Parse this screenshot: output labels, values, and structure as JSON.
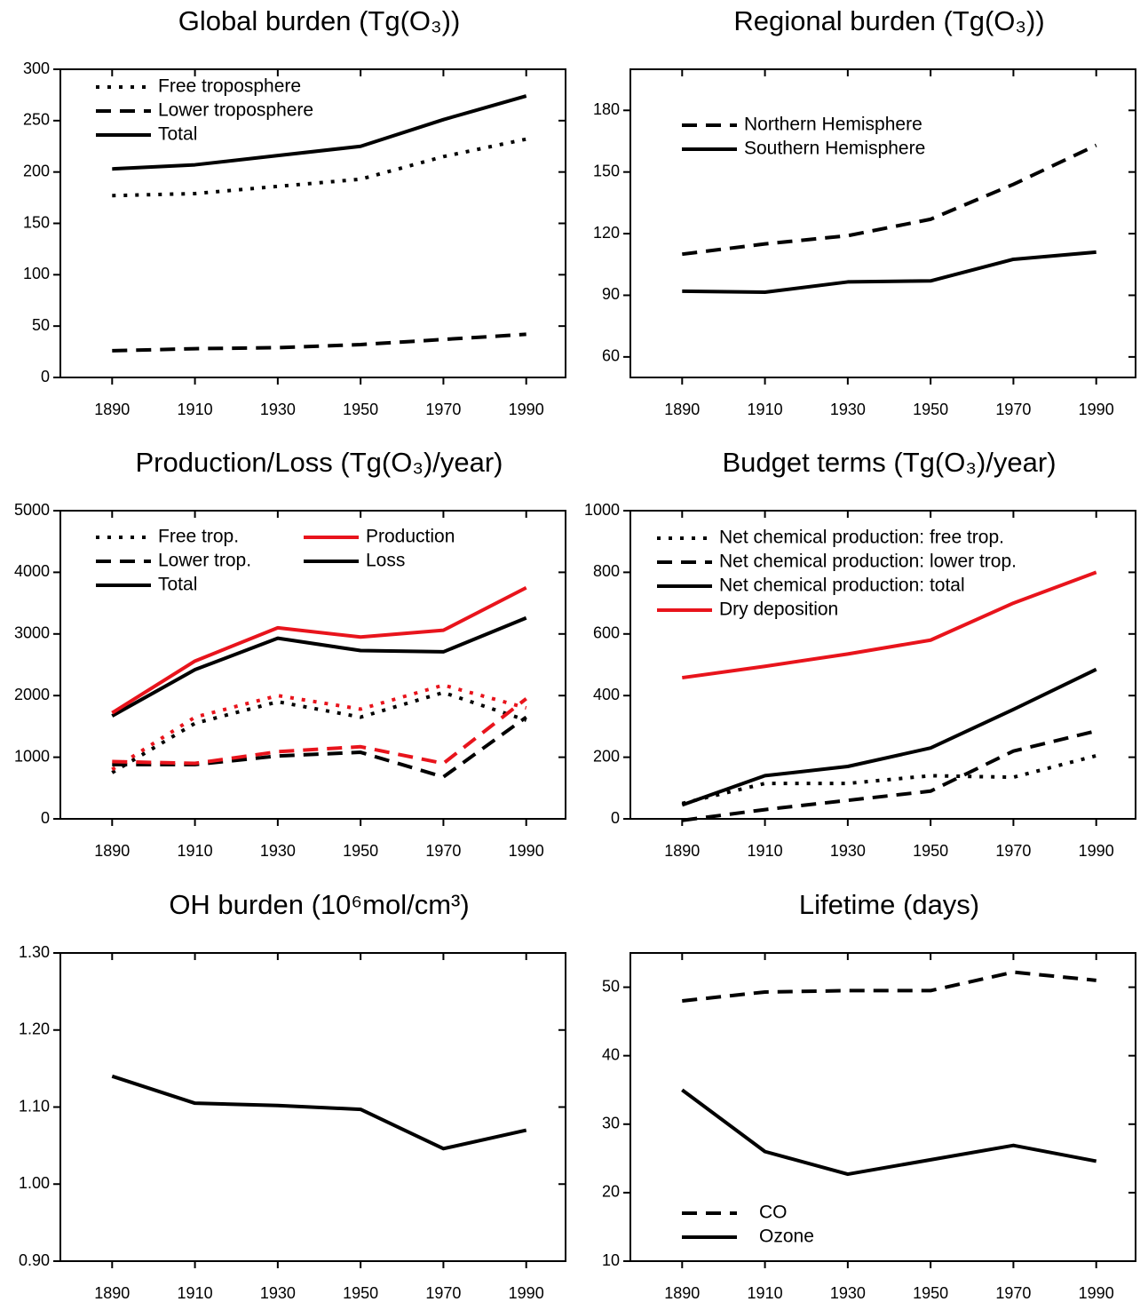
{
  "chart_data": [
    {
      "type": "line",
      "title": "Global burden (Tg(O₃))",
      "x": [
        1890,
        1910,
        1930,
        1950,
        1970,
        1990
      ],
      "xlim": [
        1877.5,
        1999.5
      ],
      "xticks": [
        1890,
        1910,
        1930,
        1950,
        1970,
        1990
      ],
      "ylim": [
        0,
        300
      ],
      "yticks": [
        0,
        50,
        100,
        150,
        200,
        250,
        300
      ],
      "legend_corner": "upper left",
      "series": [
        {
          "name": "Free troposphere",
          "dash": "dotted",
          "color": "#000000",
          "values": [
            177,
            179,
            186,
            193,
            215,
            232
          ]
        },
        {
          "name": "Lower troposphere",
          "dash": "dashed",
          "color": "#000000",
          "values": [
            26,
            28,
            29,
            32,
            37,
            42
          ]
        },
        {
          "name": "Total",
          "dash": "solid",
          "color": "#000000",
          "values": [
            203,
            207,
            216,
            225,
            251,
            274
          ]
        }
      ]
    },
    {
      "type": "line",
      "title": "Regional burden (Tg(O₃))",
      "x": [
        1890,
        1910,
        1930,
        1950,
        1970,
        1990
      ],
      "xlim": [
        1877.5,
        1999.5
      ],
      "xticks": [
        1890,
        1910,
        1930,
        1950,
        1970,
        1990
      ],
      "ylim": [
        50,
        200
      ],
      "yticks": [
        60,
        90,
        120,
        150,
        180
      ],
      "legend_corner": "upper left",
      "series": [
        {
          "name": "Northern Hemisphere",
          "dash": "dashed",
          "color": "#000000",
          "values": [
            110,
            115,
            119,
            127,
            144,
            163
          ]
        },
        {
          "name": "Southern Hemisphere",
          "dash": "solid",
          "color": "#000000",
          "values": [
            92,
            91.5,
            96.5,
            97,
            107.5,
            111
          ]
        }
      ]
    },
    {
      "type": "line",
      "title": "Production/Loss (Tg(O₃)/year)",
      "x": [
        1890,
        1910,
        1930,
        1950,
        1970,
        1990
      ],
      "xlim": [
        1877.5,
        1999.5
      ],
      "xticks": [
        1890,
        1910,
        1930,
        1950,
        1970,
        1990
      ],
      "ylim": [
        0,
        5000
      ],
      "yticks": [
        0,
        1000,
        2000,
        3000,
        4000,
        5000
      ],
      "legend_corner": "upper left",
      "legend_columns": [
        [
          {
            "name": "Free trop.",
            "dash": "dotted",
            "color": "#000000"
          },
          {
            "name": "Lower trop.",
            "dash": "dashed",
            "color": "#000000"
          },
          {
            "name": "Total",
            "dash": "solid",
            "color": "#000000"
          }
        ],
        [
          {
            "name": "Production",
            "dash": "solid",
            "color": "#e8141c"
          },
          {
            "name": "Loss",
            "dash": "solid",
            "color": "#000000"
          }
        ]
      ],
      "series": [
        {
          "dash": "dotted",
          "color": "#000000",
          "values": [
            750,
            1550,
            1900,
            1650,
            2050,
            1600
          ]
        },
        {
          "dash": "dotted",
          "color": "#e8141c",
          "values": [
            800,
            1650,
            2000,
            1780,
            2170,
            1800
          ]
        },
        {
          "dash": "dashed",
          "color": "#000000",
          "values": [
            880,
            880,
            1020,
            1080,
            680,
            1650
          ]
        },
        {
          "dash": "dashed",
          "color": "#e8141c",
          "values": [
            930,
            900,
            1090,
            1170,
            900,
            1950
          ]
        },
        {
          "dash": "solid",
          "color": "#000000",
          "values": [
            1670,
            2420,
            2930,
            2730,
            2710,
            3260
          ]
        },
        {
          "dash": "solid",
          "color": "#e8141c",
          "values": [
            1720,
            2560,
            3100,
            2950,
            3060,
            3750
          ]
        }
      ]
    },
    {
      "type": "line",
      "title": "Budget terms (Tg(O₃)/year)",
      "x": [
        1890,
        1910,
        1930,
        1950,
        1970,
        1990
      ],
      "xlim": [
        1877.5,
        1999.5
      ],
      "xticks": [
        1890,
        1910,
        1930,
        1950,
        1970,
        1990
      ],
      "ylim": [
        0,
        1000
      ],
      "yticks": [
        0,
        200,
        400,
        600,
        800,
        1000
      ],
      "legend_corner": "upper left",
      "series": [
        {
          "name": "Net chemical production: free trop.",
          "dash": "dotted",
          "color": "#000000",
          "values": [
            50,
            115,
            115,
            140,
            135,
            205
          ]
        },
        {
          "name": "Net chemical production: lower trop.",
          "dash": "dashed",
          "color": "#000000",
          "values": [
            -5,
            30,
            60,
            90,
            220,
            285
          ]
        },
        {
          "name": "Net chemical production: total",
          "dash": "solid",
          "color": "#000000",
          "values": [
            45,
            140,
            170,
            230,
            355,
            485
          ]
        },
        {
          "name": "Dry deposition",
          "dash": "solid",
          "color": "#e8141c",
          "values": [
            458,
            495,
            535,
            580,
            700,
            800
          ]
        }
      ]
    },
    {
      "type": "line",
      "title": "OH burden (10⁶mol/cm³)",
      "x": [
        1890,
        1910,
        1930,
        1950,
        1970,
        1990
      ],
      "xlim": [
        1877.5,
        1999.5
      ],
      "xticks": [
        1890,
        1910,
        1930,
        1950,
        1970,
        1990
      ],
      "ylim": [
        0.9,
        1.3
      ],
      "yticks": [
        {
          "value": 0.9,
          "label": "0.90"
        },
        {
          "value": 1.0,
          "label": "1.00"
        },
        {
          "value": 1.1,
          "label": "1.10"
        },
        {
          "value": 1.2,
          "label": "1.20"
        },
        {
          "value": 1.3,
          "label": "1.30"
        }
      ],
      "series": [
        {
          "dash": "solid",
          "color": "#000000",
          "values": [
            1.14,
            1.105,
            1.102,
            1.097,
            1.046,
            1.07
          ]
        }
      ]
    },
    {
      "type": "line",
      "title": "Lifetime (days)",
      "x": [
        1890,
        1910,
        1930,
        1950,
        1970,
        1990
      ],
      "xlim": [
        1877.5,
        1999.5
      ],
      "xticks": [
        1890,
        1910,
        1930,
        1950,
        1970,
        1990
      ],
      "ylim": [
        10,
        55
      ],
      "yticks": [
        10,
        20,
        30,
        40,
        50
      ],
      "legend_corner": "lower left",
      "series": [
        {
          "name": "CO",
          "dash": "dashed",
          "color": "#000000",
          "values": [
            48,
            49.3,
            49.5,
            49.5,
            52.2,
            51
          ]
        },
        {
          "name": "Ozone",
          "dash": "solid",
          "color": "#000000",
          "values": [
            35,
            26,
            22.7,
            24.8,
            26.9,
            24.6
          ]
        }
      ]
    }
  ]
}
